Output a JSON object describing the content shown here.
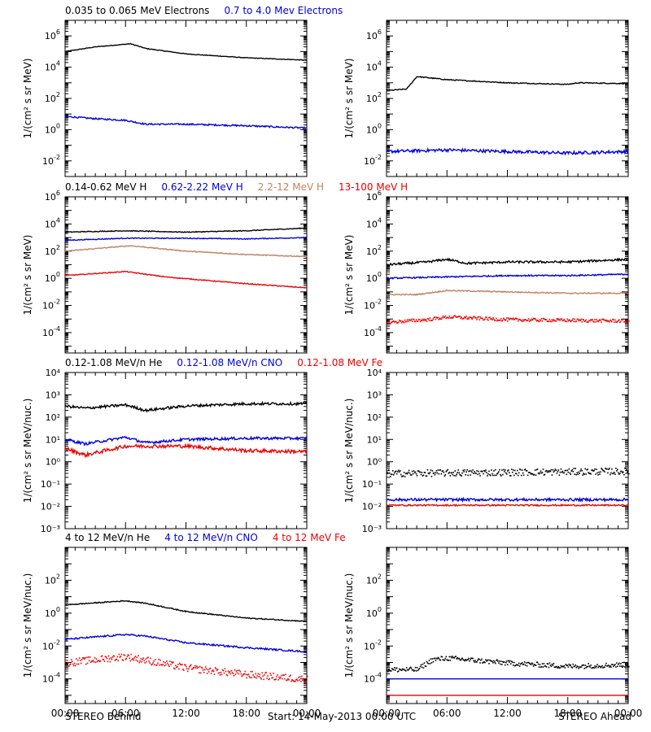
{
  "colors": {
    "black": "#000000",
    "blue": "#0000dd",
    "tan": "#c08060",
    "red": "#ee0000"
  },
  "footer": {
    "left": "STEREO Behind",
    "center": "Start: 14-May-2013 00:00 UTC",
    "right": "STEREO Ahead"
  },
  "x_ticks": [
    "00:00",
    "06:00",
    "12:00",
    "18:00",
    "00:00"
  ],
  "rows": [
    {
      "ylabel": "1/(cm² s sr MeV)",
      "legend": [
        {
          "text": "0.035 to 0.065 MeV Electrons",
          "color": "black"
        },
        {
          "text": "0.7 to 4.0 Mev Electrons",
          "color": "blue"
        }
      ],
      "ylog": [
        -3,
        7
      ],
      "ticks": [
        -2,
        0,
        2,
        4,
        6
      ],
      "style": "pow"
    },
    {
      "ylabel": "1/(cm² s sr MeV)",
      "legend": [
        {
          "text": "0.14-0.62 MeV H",
          "color": "black"
        },
        {
          "text": "0.62-2.22 MeV H",
          "color": "blue"
        },
        {
          "text": "2.2-12 MeV H",
          "color": "tan"
        },
        {
          "text": "13-100 MeV H",
          "color": "red"
        }
      ],
      "ylog": [
        -5.5,
        6
      ],
      "ticks": [
        -4,
        -2,
        0,
        2,
        4,
        6
      ],
      "style": "pow"
    },
    {
      "ylabel": "1/(cm² s sr MeV/nuc.)",
      "legend": [
        {
          "text": "0.12-1.08 MeV/n He",
          "color": "black"
        },
        {
          "text": "0.12-1.08 MeV/n CNO",
          "color": "blue"
        },
        {
          "text": "0.12-1.08 MeV Fe",
          "color": "red"
        }
      ],
      "ylog": [
        -3,
        4
      ],
      "ticks": [
        -3,
        -2,
        -1,
        0,
        1,
        2,
        3,
        4
      ],
      "style": "sup"
    },
    {
      "ylabel": "1/(cm² s sr MeV/nuc.)",
      "legend": [
        {
          "text": "4 to 12 MeV/n He",
          "color": "black"
        },
        {
          "text": "4 to 12 MeV/n CNO",
          "color": "blue"
        },
        {
          "text": "4 to 12 MeV Fe",
          "color": "red"
        }
      ],
      "ylog": [
        -5.5,
        4
      ],
      "ticks": [
        -4,
        -2,
        0,
        2
      ],
      "style": "pow"
    }
  ],
  "chart_data": {
    "type": "line",
    "x_unit": "hours since start",
    "x_range": [
      0,
      24
    ],
    "y_scale": "log10",
    "panels": [
      {
        "spacecraft": "STEREO Behind",
        "row": 0,
        "series": [
          {
            "color": "black",
            "noise": 0.02,
            "points": [
              [
                0,
                5.0
              ],
              [
                3,
                5.3
              ],
              [
                6.5,
                5.5
              ],
              [
                8,
                5.2
              ],
              [
                12,
                4.85
              ],
              [
                18,
                4.6
              ],
              [
                24,
                4.45
              ]
            ]
          },
          {
            "color": "blue",
            "noise": 0.05,
            "points": [
              [
                0,
                0.85
              ],
              [
                3,
                0.7
              ],
              [
                6,
                0.6
              ],
              [
                8,
                0.35
              ],
              [
                12,
                0.35
              ],
              [
                18,
                0.25
              ],
              [
                24,
                0.1
              ]
            ]
          }
        ]
      },
      {
        "spacecraft": "STEREO Ahead",
        "row": 0,
        "series": [
          {
            "color": "black",
            "noise": 0.03,
            "points": [
              [
                0,
                2.5
              ],
              [
                2,
                2.6
              ],
              [
                3,
                3.4
              ],
              [
                6,
                3.2
              ],
              [
                12,
                3.0
              ],
              [
                18,
                2.9
              ],
              [
                19,
                3.0
              ],
              [
                24,
                2.95
              ]
            ]
          },
          {
            "color": "blue",
            "noise": 0.1,
            "points": [
              [
                0,
                -1.4
              ],
              [
                6,
                -1.3
              ],
              [
                12,
                -1.4
              ],
              [
                18,
                -1.5
              ],
              [
                24,
                -1.4
              ]
            ]
          }
        ]
      },
      {
        "spacecraft": "STEREO Behind",
        "row": 1,
        "series": [
          {
            "color": "black",
            "noise": 0.03,
            "points": [
              [
                0,
                3.4
              ],
              [
                6,
                3.5
              ],
              [
                12,
                3.4
              ],
              [
                18,
                3.5
              ],
              [
                24,
                3.7
              ]
            ]
          },
          {
            "color": "blue",
            "noise": 0.03,
            "points": [
              [
                0,
                2.8
              ],
              [
                6,
                2.95
              ],
              [
                12,
                2.95
              ],
              [
                18,
                2.9
              ],
              [
                24,
                3.0
              ]
            ]
          },
          {
            "color": "tan",
            "noise": 0.03,
            "points": [
              [
                0,
                2.0
              ],
              [
                6.5,
                2.4
              ],
              [
                12,
                2.0
              ],
              [
                18,
                1.75
              ],
              [
                24,
                1.6
              ]
            ]
          },
          {
            "color": "red",
            "noise": 0.03,
            "points": [
              [
                0,
                0.2
              ],
              [
                6,
                0.5
              ],
              [
                10,
                0.1
              ],
              [
                18,
                -0.4
              ],
              [
                24,
                -0.7
              ]
            ]
          }
        ]
      },
      {
        "spacecraft": "STEREO Ahead",
        "row": 1,
        "series": [
          {
            "color": "black",
            "noise": 0.08,
            "points": [
              [
                0,
                1.0
              ],
              [
                4,
                1.2
              ],
              [
                6,
                1.4
              ],
              [
                8,
                1.1
              ],
              [
                12,
                1.2
              ],
              [
                18,
                1.2
              ],
              [
                24,
                1.4
              ]
            ]
          },
          {
            "color": "blue",
            "noise": 0.05,
            "points": [
              [
                0,
                0.0
              ],
              [
                6,
                0.1
              ],
              [
                12,
                0.2
              ],
              [
                18,
                0.2
              ],
              [
                24,
                0.3
              ]
            ]
          },
          {
            "color": "tan",
            "noise": 0.04,
            "points": [
              [
                0,
                -1.2
              ],
              [
                3,
                -1.2
              ],
              [
                6,
                -0.9
              ],
              [
                12,
                -1.0
              ],
              [
                18,
                -1.1
              ],
              [
                24,
                -1.1
              ]
            ]
          },
          {
            "color": "red",
            "noise": 0.12,
            "points": [
              [
                0,
                -3.2
              ],
              [
                4,
                -3.0
              ],
              [
                6,
                -2.8
              ],
              [
                12,
                -3.0
              ],
              [
                24,
                -3.1
              ]
            ]
          }
        ]
      },
      {
        "spacecraft": "STEREO Behind",
        "row": 2,
        "series": [
          {
            "color": "black",
            "noise": 0.06,
            "points": [
              [
                0,
                2.5
              ],
              [
                2,
                2.4
              ],
              [
                6,
                2.55
              ],
              [
                8,
                2.3
              ],
              [
                12,
                2.5
              ],
              [
                18,
                2.6
              ],
              [
                24,
                2.6
              ]
            ]
          },
          {
            "color": "blue",
            "noise": 0.06,
            "points": [
              [
                0,
                1.0
              ],
              [
                2,
                0.8
              ],
              [
                6,
                1.1
              ],
              [
                8,
                0.85
              ],
              [
                12,
                1.0
              ],
              [
                18,
                1.05
              ],
              [
                24,
                1.05
              ]
            ]
          },
          {
            "color": "red",
            "noise": 0.08,
            "points": [
              [
                0,
                0.6
              ],
              [
                2,
                0.3
              ],
              [
                6,
                0.7
              ],
              [
                12,
                0.7
              ],
              [
                18,
                0.5
              ],
              [
                24,
                0.45
              ]
            ]
          }
        ]
      },
      {
        "spacecraft": "STEREO Ahead",
        "row": 2,
        "series": [
          {
            "color": "black",
            "noise": 0.15,
            "points": [
              [
                0,
                -0.5
              ],
              [
                12,
                -0.45
              ],
              [
                24,
                -0.4
              ]
            ]
          },
          {
            "color": "blue",
            "noise": 0.06,
            "points": [
              [
                0,
                -1.7
              ],
              [
                24,
                -1.7
              ]
            ]
          },
          {
            "color": "red",
            "noise": 0.03,
            "points": [
              [
                0,
                -1.95
              ],
              [
                24,
                -1.95
              ]
            ]
          }
        ]
      },
      {
        "spacecraft": "STEREO Behind",
        "row": 3,
        "series": [
          {
            "color": "black",
            "noise": 0.03,
            "points": [
              [
                0,
                0.5
              ],
              [
                6,
                0.75
              ],
              [
                8,
                0.6
              ],
              [
                12,
                0.1
              ],
              [
                18,
                -0.3
              ],
              [
                24,
                -0.5
              ]
            ]
          },
          {
            "color": "blue",
            "noise": 0.05,
            "points": [
              [
                0,
                -1.6
              ],
              [
                6,
                -1.3
              ],
              [
                8,
                -1.4
              ],
              [
                12,
                -1.8
              ],
              [
                18,
                -2.1
              ],
              [
                24,
                -2.35
              ]
            ]
          },
          {
            "color": "red",
            "noise": 0.22,
            "points": [
              [
                0,
                -3.0
              ],
              [
                6,
                -2.6
              ],
              [
                12,
                -3.3
              ],
              [
                18,
                -3.7
              ],
              [
                24,
                -4.0
              ]
            ]
          }
        ]
      },
      {
        "spacecraft": "STEREO Ahead",
        "row": 3,
        "series": [
          {
            "color": "black",
            "noise": 0.15,
            "points": [
              [
                0,
                -3.4
              ],
              [
                3,
                -3.4
              ],
              [
                4.5,
                -2.8
              ],
              [
                6,
                -2.7
              ],
              [
                12,
                -3.0
              ],
              [
                18,
                -3.2
              ],
              [
                24,
                -3.1
              ]
            ]
          },
          {
            "color": "blue",
            "noise": 0.0,
            "points": [
              [
                0,
                -4.0
              ],
              [
                24,
                -4.0
              ]
            ]
          },
          {
            "color": "red",
            "noise": 0.0,
            "points": [
              [
                0,
                -5.0
              ],
              [
                24,
                -5.0
              ]
            ]
          }
        ]
      }
    ]
  }
}
